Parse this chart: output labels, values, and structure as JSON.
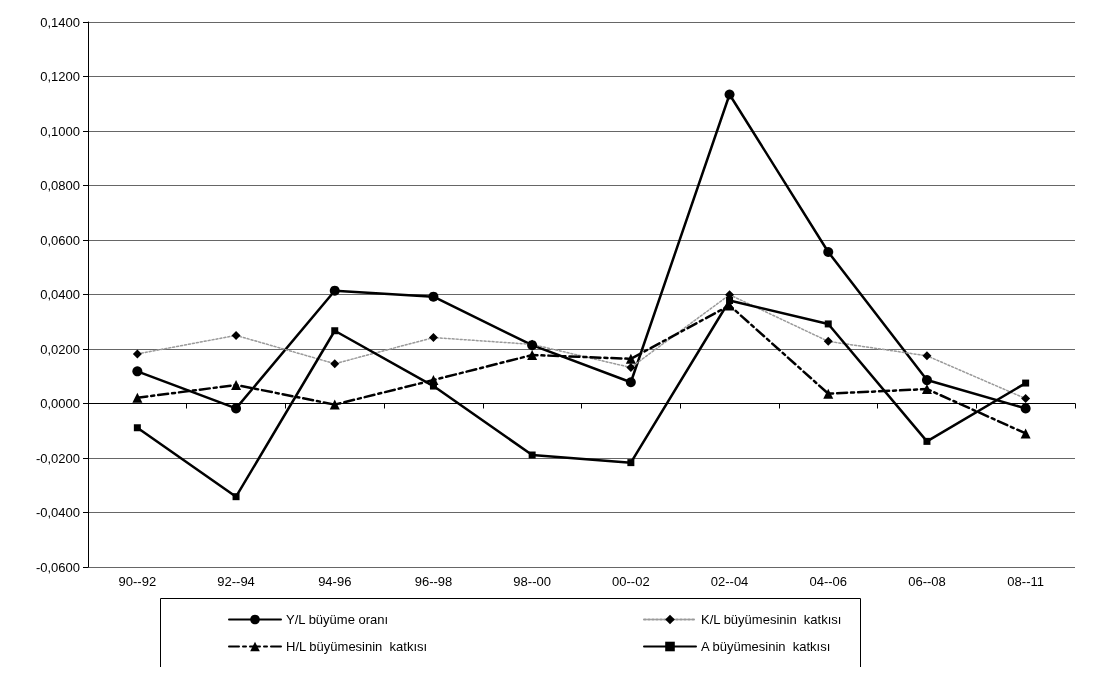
{
  "chart_data": {
    "type": "line",
    "categories": [
      "90--92",
      "92--94",
      "94-96",
      "96--98",
      "98--00",
      "00--02",
      "02--04",
      "04--06",
      "06--08",
      "08--11"
    ],
    "series": [
      {
        "name": "Y/L büyüme oranı",
        "color": "#000000",
        "marker": "circle",
        "line_style": "solid",
        "values": [
          0.0118,
          -0.0018,
          0.0414,
          0.0392,
          0.0214,
          0.0078,
          0.1134,
          0.0556,
          0.0086,
          -0.0018
        ]
      },
      {
        "name": "K/L büyümesinin  katkısı",
        "color": "#000000",
        "marker": "diamond",
        "line_style": "dotted",
        "values": [
          0.0182,
          0.025,
          0.0146,
          0.0242,
          0.0217,
          0.0132,
          0.0399,
          0.0228,
          0.0175,
          0.0018
        ]
      },
      {
        "name": "H/L büyümesinin  katkısı",
        "color": "#000000",
        "marker": "triangle",
        "line_style": "dashed",
        "values": [
          0.0021,
          0.0068,
          -0.0004,
          0.0086,
          0.0178,
          0.0164,
          0.036,
          0.0036,
          0.0053,
          -0.011
        ]
      },
      {
        "name": "A büyümesinin  katkısı",
        "color": "#000000",
        "marker": "square",
        "line_style": "solid",
        "values": [
          -0.0089,
          -0.0342,
          0.0267,
          0.0064,
          -0.0189,
          -0.0217,
          0.0378,
          0.0292,
          -0.0139,
          0.0075
        ]
      }
    ],
    "ylim": [
      -0.06,
      0.14
    ],
    "yticks": [
      {
        "value": -0.06,
        "label": "-0,0600"
      },
      {
        "value": -0.04,
        "label": "-0,0400"
      },
      {
        "value": -0.02,
        "label": "-0,0200"
      },
      {
        "value": 0,
        "label": "0,0000"
      },
      {
        "value": 0.02,
        "label": "0,0200"
      },
      {
        "value": 0.04,
        "label": "0,0400"
      },
      {
        "value": 0.06,
        "label": "0,0600"
      },
      {
        "value": 0.08,
        "label": "0,0800"
      },
      {
        "value": 0.1,
        "label": "0,1000"
      },
      {
        "value": 0.12,
        "label": "0,1200"
      },
      {
        "value": 0.14,
        "label": "0,1400"
      }
    ],
    "grid": "y",
    "legend": "bottom"
  }
}
